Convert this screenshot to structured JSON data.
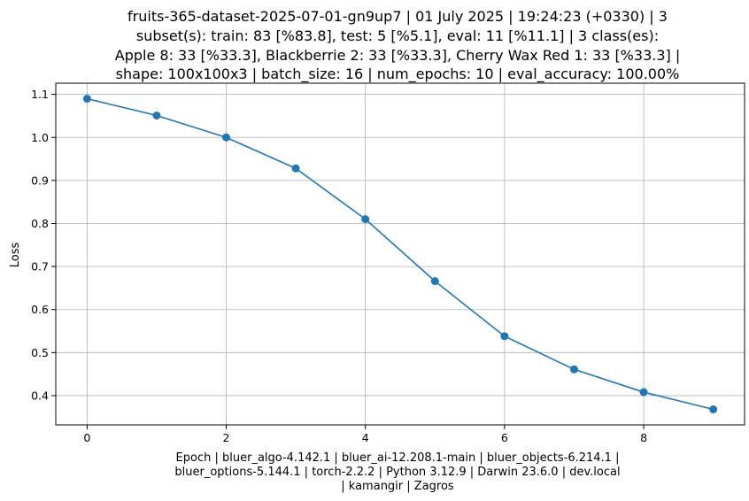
{
  "chart_data": {
    "type": "line",
    "title_lines": [
      "fruits-365-dataset-2025-07-01-gn9up7 | 01 July 2025 | 19:24:23 (+0330) | 3",
      "subset(s): train: 83 [%83.8], test: 5 [%5.1], eval: 11 [%11.1] | 3 class(es):",
      "Apple 8: 33 [%33.3], Blackberrie 2: 33 [%33.3], Cherry Wax Red 1: 33 [%33.3] |",
      "shape: 100x100x3 | batch_size: 16 | num_epochs: 10 | eval_accuracy: 100.00%"
    ],
    "xlabel_lines": [
      "Epoch | bluer_algo-4.142.1 | bluer_ai-12.208.1-main | bluer_objects-6.214.1 |",
      "bluer_options-5.144.1 | torch-2.2.2 | Python 3.12.9 | Darwin 23.6.0 | dev.local",
      "| kamangir | Zagros"
    ],
    "ylabel": "Loss",
    "x": [
      0,
      1,
      2,
      3,
      4,
      5,
      6,
      7,
      8,
      9
    ],
    "series": [
      {
        "values": [
          1.09,
          1.051,
          1.0,
          0.928,
          0.81,
          0.666,
          0.538,
          0.461,
          0.408,
          0.368
        ],
        "color": "#1f77b4"
      }
    ],
    "xlim": [
      -0.45,
      9.45
    ],
    "ylim": [
      0.332,
      1.126
    ],
    "xticks": [
      0,
      2,
      4,
      6,
      8
    ],
    "xtick_labels": [
      "0",
      "2",
      "4",
      "6",
      "8"
    ],
    "yticks": [
      0.4,
      0.5,
      0.6,
      0.7,
      0.8,
      0.9,
      1.0,
      1.1
    ],
    "ytick_labels": [
      "0.4",
      "0.5",
      "0.6",
      "0.7",
      "0.8",
      "0.9",
      "1.0",
      "1.1"
    ],
    "grid": true,
    "grid_color": "#b0b0b0",
    "marker": "circle"
  }
}
